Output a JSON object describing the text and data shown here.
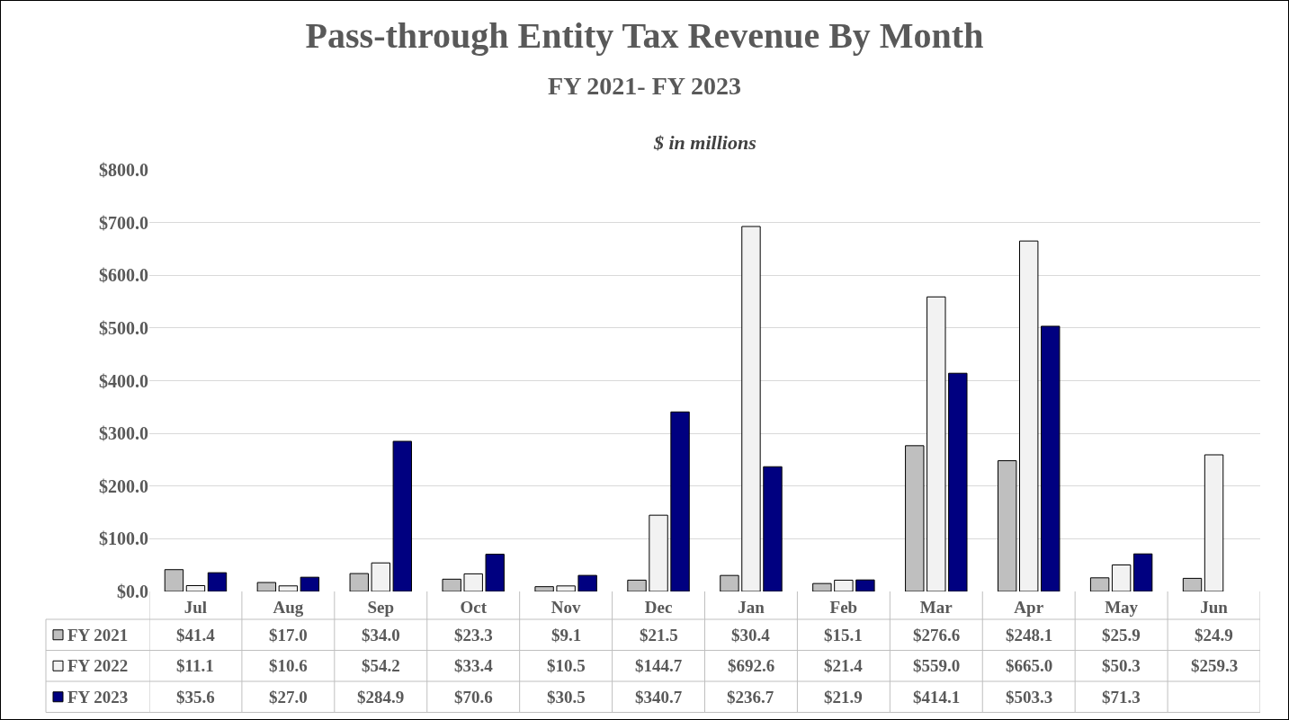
{
  "chart_data": {
    "type": "bar",
    "title": "Pass-through Entity Tax Revenue By Month",
    "subtitle": "FY 2021- FY 2023",
    "annotations": [
      "$ in millions"
    ],
    "categories": [
      "Jul",
      "Aug",
      "Sep",
      "Oct",
      "Nov",
      "Dec",
      "Jan",
      "Feb",
      "Mar",
      "Apr",
      "May",
      "Jun"
    ],
    "series": [
      {
        "name": "FY 2021",
        "color": "#bfbfbf",
        "values": [
          41.4,
          17.0,
          34.0,
          23.3,
          9.1,
          21.5,
          30.4,
          15.1,
          276.6,
          248.1,
          25.9,
          24.9
        ],
        "value_labels": [
          "$41.4",
          "$17.0",
          "$34.0",
          "$23.3",
          "$9.1",
          "$21.5",
          "$30.4",
          "$15.1",
          "$276.6",
          "$248.1",
          "$25.9",
          "$24.9"
        ]
      },
      {
        "name": "FY 2022",
        "color": "#f2f2f2",
        "values": [
          11.1,
          10.6,
          54.2,
          33.4,
          10.5,
          144.7,
          692.6,
          21.4,
          559.0,
          665.0,
          50.3,
          259.3
        ],
        "value_labels": [
          "$11.1",
          "$10.6",
          "$54.2",
          "$33.4",
          "$10.5",
          "$144.7",
          "$692.6",
          "$21.4",
          "$559.0",
          "$665.0",
          "$50.3",
          "$259.3"
        ]
      },
      {
        "name": "FY 2023",
        "color": "#000080",
        "values": [
          35.6,
          27.0,
          284.9,
          70.6,
          30.5,
          340.7,
          236.7,
          21.9,
          414.1,
          503.3,
          71.3,
          null
        ],
        "value_labels": [
          "$35.6",
          "$27.0",
          "$284.9",
          "$70.6",
          "$30.5",
          "$340.7",
          "$236.7",
          "$21.9",
          "$414.1",
          "$503.3",
          "$71.3",
          null
        ]
      }
    ],
    "ylim": [
      0,
      800
    ],
    "yticks": [
      {
        "value": 0,
        "label": "$0.0"
      },
      {
        "value": 100,
        "label": "$100.0"
      },
      {
        "value": 200,
        "label": "$200.0"
      },
      {
        "value": 300,
        "label": "$300.0"
      },
      {
        "value": 400,
        "label": "$400.0"
      },
      {
        "value": 500,
        "label": "$500.0"
      },
      {
        "value": 600,
        "label": "$600.0"
      },
      {
        "value": 700,
        "label": "$700.0"
      },
      {
        "value": 800,
        "label": "$800.0"
      }
    ],
    "grid": "y",
    "legend": "bottom"
  }
}
